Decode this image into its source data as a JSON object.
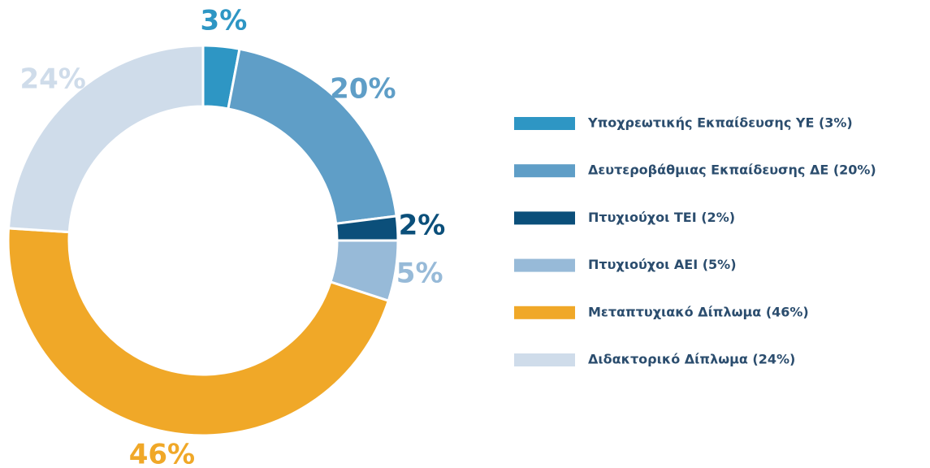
{
  "chart_data": {
    "type": "pie",
    "donut": true,
    "categories": [
      "Υποχρεωτικής Εκπαίδευσης ΥΕ (3%)",
      "Δευτεροβάθμιας Εκπαίδευσης ΔΕ (20%)",
      "Πτυχιούχοι ΤΕΙ (2%)",
      "Πτυχιούχοι ΑΕΙ (5%)",
      "Μεταπτυχιακό Δίπλωμα (46%)",
      "Διδακτορικό Δίπλωμα (24%)"
    ],
    "values": [
      3,
      20,
      2,
      5,
      46,
      24
    ],
    "value_labels": [
      "3%",
      "20%",
      "2%",
      "5%",
      "46%",
      "24%"
    ],
    "colors": [
      "#2e96c4",
      "#5f9ec7",
      "#0b4f7a",
      "#97bad8",
      "#f0a828",
      "#cfdcea"
    ],
    "legend": "right"
  }
}
